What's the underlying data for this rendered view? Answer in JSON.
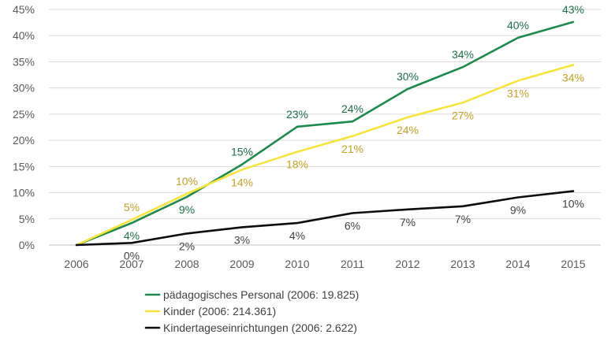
{
  "chart_data": {
    "type": "line",
    "x": [
      "2006",
      "2007",
      "2008",
      "2009",
      "2010",
      "2011",
      "2012",
      "2013",
      "2014",
      "2015"
    ],
    "ylim": [
      0,
      45
    ],
    "yticks": [
      "0%",
      "5%",
      "10%",
      "15%",
      "20%",
      "25%",
      "30%",
      "35%",
      "40%",
      "45%"
    ],
    "grid": true,
    "legend_position": "bottom",
    "series": [
      {
        "name": "pädagogisches Personal (2006: 19.825)",
        "color": "#1b8a4c",
        "label_color": "#1a6e4a",
        "values": [
          0,
          4.2,
          9.2,
          15.4,
          22.6,
          23.6,
          29.8,
          34.0,
          39.6,
          42.6
        ],
        "labels": [
          "",
          "4%",
          "9%",
          "15%",
          "23%",
          "24%",
          "30%",
          "34%",
          "40%",
          "43%"
        ],
        "label_pos": [
          "",
          "below",
          "below",
          "above",
          "above",
          "above",
          "above",
          "above",
          "above",
          "above"
        ]
      },
      {
        "name": "Kinder (2006: 214.361)",
        "color": "#f7e33a",
        "label_color": "#c2a11e",
        "values": [
          0,
          4.8,
          9.8,
          14.4,
          17.8,
          20.8,
          24.4,
          27.2,
          31.4,
          34.4
        ],
        "labels": [
          "",
          "5%",
          "10%",
          "14%",
          "18%",
          "21%",
          "24%",
          "27%",
          "31%",
          "34%"
        ],
        "label_pos": [
          "",
          "above",
          "above",
          "below",
          "below",
          "below",
          "below",
          "below",
          "below",
          "below"
        ]
      },
      {
        "name": "Kindertageseinrichtungen (2006: 2.622)",
        "color": "#0d0d0d",
        "label_color": "#404040",
        "values": [
          0,
          0.4,
          2.2,
          3.4,
          4.2,
          6.1,
          6.8,
          7.4,
          9.1,
          10.3
        ],
        "labels": [
          "",
          "0%",
          "2%",
          "3%",
          "4%",
          "6%",
          "7%",
          "7%",
          "9%",
          "10%"
        ],
        "label_pos": [
          "",
          "below",
          "below",
          "below",
          "below",
          "below",
          "below",
          "below",
          "below",
          "below"
        ]
      }
    ]
  }
}
